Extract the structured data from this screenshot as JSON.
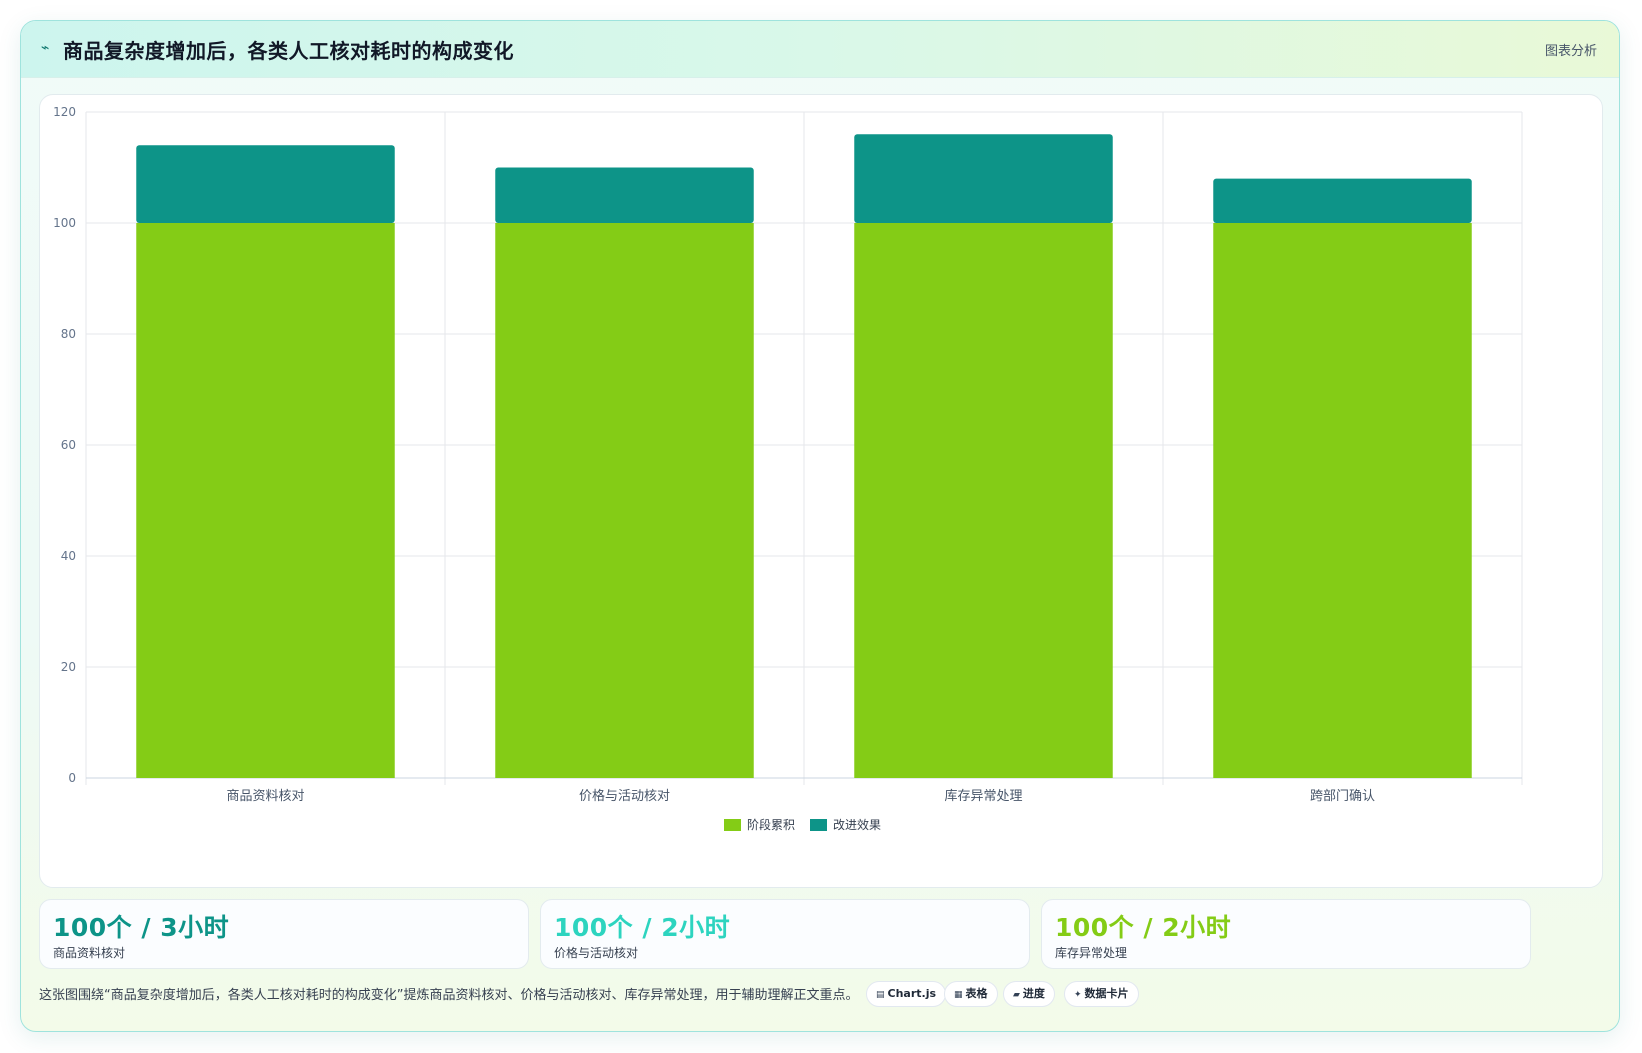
{
  "header": {
    "title": "商品复杂度增加后，各类人工核对耗时的构成变化",
    "tag": "图表分析",
    "icon": "trend-line-icon"
  },
  "chart_data": {
    "type": "bar",
    "stacked": true,
    "categories": [
      "商品资料核对",
      "价格与活动核对",
      "库存异常处理",
      "跨部门确认"
    ],
    "series": [
      {
        "name": "阶段累积",
        "values": [
          100,
          100,
          100,
          100
        ],
        "color": "#84cc16"
      },
      {
        "name": "改进效果",
        "values": [
          14,
          10,
          16,
          8
        ],
        "color": "#0d9488"
      }
    ],
    "ylim": [
      0,
      120
    ],
    "yticks": [
      0,
      20,
      40,
      60,
      80,
      100,
      120
    ],
    "grid": true,
    "legend": "bottom"
  },
  "stats": [
    {
      "value": "100个 / 3小时",
      "label": "商品资料核对",
      "color": "#0d9488"
    },
    {
      "value": "100个 / 2小时",
      "label": "价格与活动核对",
      "color": "#2dd4bf"
    },
    {
      "value": "100个 / 2小时",
      "label": "库存异常处理",
      "color": "#84cc16"
    }
  ],
  "footer": {
    "text": "这张图围绕“商品复杂度增加后，各类人工核对耗时的构成变化”提炼商品资料核对、价格与活动核对、库存异常处理，用于辅助理解正文重点。"
  },
  "chips": [
    {
      "icon": "chart-icon",
      "glyph": "▤",
      "label": "Chart.js"
    },
    {
      "icon": "table-icon",
      "glyph": "▦",
      "label": "表格"
    },
    {
      "icon": "progress-icon",
      "glyph": "▰",
      "label": "进度"
    },
    {
      "icon": "sparkle-icon",
      "glyph": "✦",
      "label": "数据卡片"
    }
  ]
}
